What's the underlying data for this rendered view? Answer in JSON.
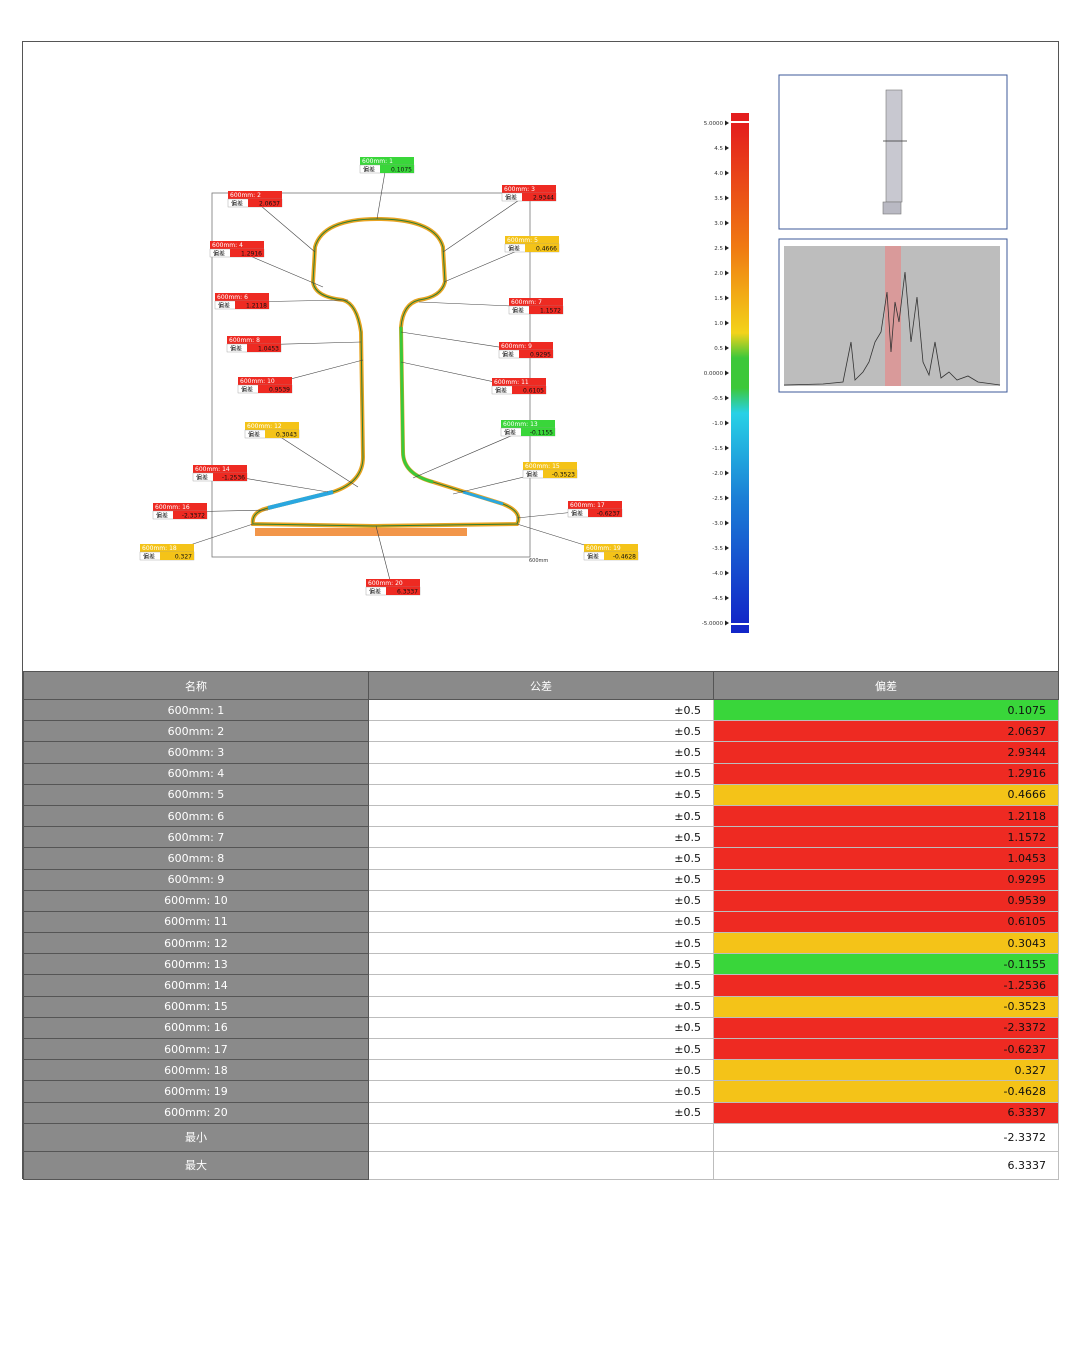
{
  "table": {
    "headers": {
      "name": "名称",
      "tolerance": "公差",
      "deviation": "偏差"
    },
    "rows": [
      {
        "name": "600mm: 1",
        "tolerance": "±0.5",
        "deviation": "0.1075",
        "status": "green"
      },
      {
        "name": "600mm: 2",
        "tolerance": "±0.5",
        "deviation": "2.0637",
        "status": "red"
      },
      {
        "name": "600mm: 3",
        "tolerance": "±0.5",
        "deviation": "2.9344",
        "status": "red"
      },
      {
        "name": "600mm: 4",
        "tolerance": "±0.5",
        "deviation": "1.2916",
        "status": "red"
      },
      {
        "name": "600mm: 5",
        "tolerance": "±0.5",
        "deviation": "0.4666",
        "status": "yellow"
      },
      {
        "name": "600mm: 6",
        "tolerance": "±0.5",
        "deviation": "1.2118",
        "status": "red"
      },
      {
        "name": "600mm: 7",
        "tolerance": "±0.5",
        "deviation": "1.1572",
        "status": "red"
      },
      {
        "name": "600mm: 8",
        "tolerance": "±0.5",
        "deviation": "1.0453",
        "status": "red"
      },
      {
        "name": "600mm: 9",
        "tolerance": "±0.5",
        "deviation": "0.9295",
        "status": "red"
      },
      {
        "name": "600mm: 10",
        "tolerance": "±0.5",
        "deviation": "0.9539",
        "status": "red"
      },
      {
        "name": "600mm: 11",
        "tolerance": "±0.5",
        "deviation": "0.6105",
        "status": "red"
      },
      {
        "name": "600mm: 12",
        "tolerance": "±0.5",
        "deviation": "0.3043",
        "status": "yellow"
      },
      {
        "name": "600mm: 13",
        "tolerance": "±0.5",
        "deviation": "-0.1155",
        "status": "green"
      },
      {
        "name": "600mm: 14",
        "tolerance": "±0.5",
        "deviation": "-1.2536",
        "status": "red"
      },
      {
        "name": "600mm: 15",
        "tolerance": "±0.5",
        "deviation": "-0.3523",
        "status": "yellow"
      },
      {
        "name": "600mm: 16",
        "tolerance": "±0.5",
        "deviation": "-2.3372",
        "status": "red"
      },
      {
        "name": "600mm: 17",
        "tolerance": "±0.5",
        "deviation": "-0.6237",
        "status": "red"
      },
      {
        "name": "600mm: 18",
        "tolerance": "±0.5",
        "deviation": "0.327",
        "status": "yellow"
      },
      {
        "name": "600mm: 19",
        "tolerance": "±0.5",
        "deviation": "-0.4628",
        "status": "yellow"
      },
      {
        "name": "600mm: 20",
        "tolerance": "±0.5",
        "deviation": "6.3337",
        "status": "red"
      }
    ],
    "summary": [
      {
        "name": "最小",
        "value": "-2.3372"
      },
      {
        "name": "最大",
        "value": "6.3337"
      }
    ]
  },
  "profile": {
    "callout_key": "偏差",
    "axis_label": "600mm"
  },
  "color_scale": {
    "ticks": [
      "5.0000",
      "4.5",
      "4.0",
      "3.5",
      "3.0",
      "2.5",
      "2.0",
      "1.5",
      "1.0",
      "0.5",
      "0.0000",
      "-0.5",
      "-1.0",
      "-1.5",
      "-2.0",
      "-2.5",
      "-3.0",
      "-3.5",
      "-4.0",
      "-4.5",
      "-5.0000"
    ]
  },
  "colors": {
    "green": "#39d63a",
    "red": "#ee2a22",
    "yellow": "#f4c318",
    "header_gray": "#8a8a8a"
  }
}
